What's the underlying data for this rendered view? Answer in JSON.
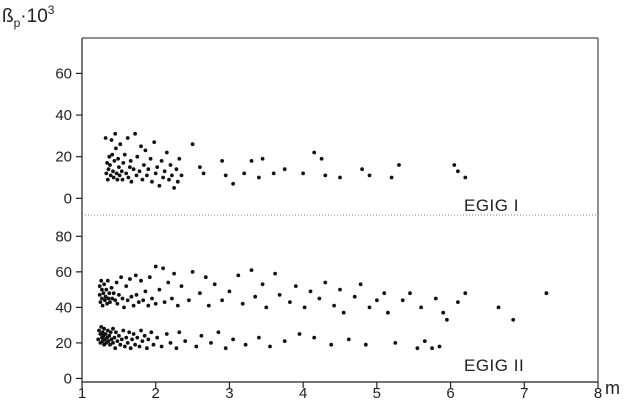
{
  "chart_data": {
    "type": "scatter",
    "ylabel": {
      "beta": "ß",
      "sub": "p",
      "dot": "·",
      "base": "10",
      "exp": "3"
    },
    "xunit": "m",
    "x_ticks": [
      "1",
      "2",
      "3",
      "4",
      "5",
      "6",
      "7",
      "8"
    ],
    "xlim": [
      1,
      8
    ],
    "grid": false,
    "panels": [
      {
        "label": "EGIG I",
        "ylim": [
          -8,
          77
        ],
        "y_ticks": [
          "0",
          "20",
          "40",
          "60"
        ],
        "y_tick_values": [
          0,
          20,
          40,
          60
        ],
        "points": [
          [
            1.32,
            29
          ],
          [
            1.33,
            12
          ],
          [
            1.34,
            17
          ],
          [
            1.35,
            9
          ],
          [
            1.36,
            14
          ],
          [
            1.37,
            20
          ],
          [
            1.38,
            16
          ],
          [
            1.39,
            11
          ],
          [
            1.4,
            28
          ],
          [
            1.41,
            21
          ],
          [
            1.42,
            13
          ],
          [
            1.43,
            10
          ],
          [
            1.44,
            18
          ],
          [
            1.45,
            31
          ],
          [
            1.46,
            24
          ],
          [
            1.47,
            12
          ],
          [
            1.48,
            9
          ],
          [
            1.49,
            19
          ],
          [
            1.5,
            15
          ],
          [
            1.51,
            11
          ],
          [
            1.52,
            26
          ],
          [
            1.54,
            13
          ],
          [
            1.55,
            9
          ],
          [
            1.56,
            17
          ],
          [
            1.58,
            21
          ],
          [
            1.6,
            12
          ],
          [
            1.62,
            29
          ],
          [
            1.63,
            10
          ],
          [
            1.65,
            15
          ],
          [
            1.66,
            18
          ],
          [
            1.67,
            8
          ],
          [
            1.7,
            14
          ],
          [
            1.72,
            31
          ],
          [
            1.74,
            11
          ],
          [
            1.75,
            20
          ],
          [
            1.78,
            13
          ],
          [
            1.8,
            25
          ],
          [
            1.82,
            9
          ],
          [
            1.84,
            16
          ],
          [
            1.86,
            23
          ],
          [
            1.88,
            11
          ],
          [
            1.9,
            14
          ],
          [
            1.93,
            19
          ],
          [
            1.95,
            8
          ],
          [
            1.98,
            27
          ],
          [
            2.0,
            12
          ],
          [
            2.02,
            15
          ],
          [
            2.05,
            6
          ],
          [
            2.08,
            18
          ],
          [
            2.1,
            10
          ],
          [
            2.12,
            13
          ],
          [
            2.15,
            22
          ],
          [
            2.18,
            9
          ],
          [
            2.2,
            16
          ],
          [
            2.22,
            11
          ],
          [
            2.25,
            5
          ],
          [
            2.28,
            14
          ],
          [
            2.3,
            8
          ],
          [
            2.32,
            19
          ],
          [
            2.35,
            11
          ],
          [
            2.5,
            26
          ],
          [
            2.6,
            15
          ],
          [
            2.65,
            12
          ],
          [
            2.9,
            18
          ],
          [
            2.95,
            11
          ],
          [
            3.05,
            7
          ],
          [
            3.2,
            12
          ],
          [
            3.3,
            18
          ],
          [
            3.4,
            10
          ],
          [
            3.45,
            19
          ],
          [
            3.6,
            12
          ],
          [
            3.75,
            14
          ],
          [
            4.0,
            12
          ],
          [
            4.15,
            22
          ],
          [
            4.25,
            19
          ],
          [
            4.3,
            11
          ],
          [
            4.5,
            10
          ],
          [
            4.8,
            14
          ],
          [
            4.9,
            11
          ],
          [
            5.2,
            10
          ],
          [
            5.3,
            16
          ],
          [
            6.05,
            16
          ],
          [
            6.1,
            13
          ],
          [
            6.2,
            10
          ]
        ]
      },
      {
        "label": "EGIG II",
        "ylim": [
          -2,
          92
        ],
        "y_ticks": [
          "0",
          "20",
          "40",
          "60",
          "80"
        ],
        "y_tick_values": [
          0,
          20,
          40,
          60,
          80
        ],
        "points": [
          [
            1.22,
            22
          ],
          [
            1.23,
            27
          ],
          [
            1.24,
            47
          ],
          [
            1.24,
            52
          ],
          [
            1.25,
            20
          ],
          [
            1.25,
            25
          ],
          [
            1.25,
            43
          ],
          [
            1.26,
            29
          ],
          [
            1.26,
            55
          ],
          [
            1.27,
            23
          ],
          [
            1.27,
            45
          ],
          [
            1.27,
            50
          ],
          [
            1.28,
            21
          ],
          [
            1.28,
            26
          ],
          [
            1.28,
            41
          ],
          [
            1.29,
            24
          ],
          [
            1.29,
            48
          ],
          [
            1.3,
            19
          ],
          [
            1.3,
            28
          ],
          [
            1.3,
            53
          ],
          [
            1.31,
            22
          ],
          [
            1.31,
            44
          ],
          [
            1.32,
            25
          ],
          [
            1.32,
            46
          ],
          [
            1.33,
            20
          ],
          [
            1.33,
            50
          ],
          [
            1.34,
            23
          ],
          [
            1.34,
            42
          ],
          [
            1.35,
            27
          ],
          [
            1.35,
            55
          ],
          [
            1.36,
            21
          ],
          [
            1.36,
            45
          ],
          [
            1.37,
            24
          ],
          [
            1.37,
            48
          ],
          [
            1.38,
            19
          ],
          [
            1.38,
            43
          ],
          [
            1.39,
            26
          ],
          [
            1.4,
            22
          ],
          [
            1.4,
            51
          ],
          [
            1.41,
            45
          ],
          [
            1.42,
            20
          ],
          [
            1.42,
            28
          ],
          [
            1.43,
            48
          ],
          [
            1.44,
            23
          ],
          [
            1.45,
            17
          ],
          [
            1.45,
            44
          ],
          [
            1.46,
            26
          ],
          [
            1.47,
            54
          ],
          [
            1.48,
            21
          ],
          [
            1.48,
            42
          ],
          [
            1.5,
            24
          ],
          [
            1.5,
            47
          ],
          [
            1.52,
            19
          ],
          [
            1.53,
            57
          ],
          [
            1.54,
            22
          ],
          [
            1.55,
            45
          ],
          [
            1.56,
            27
          ],
          [
            1.57,
            40
          ],
          [
            1.58,
            18
          ],
          [
            1.6,
            23
          ],
          [
            1.6,
            52
          ],
          [
            1.62,
            20
          ],
          [
            1.62,
            44
          ],
          [
            1.64,
            26
          ],
          [
            1.65,
            56
          ],
          [
            1.66,
            17
          ],
          [
            1.67,
            46
          ],
          [
            1.68,
            22
          ],
          [
            1.7,
            41
          ],
          [
            1.7,
            25
          ],
          [
            1.72,
            19
          ],
          [
            1.73,
            58
          ],
          [
            1.74,
            47
          ],
          [
            1.75,
            23
          ],
          [
            1.77,
            43
          ],
          [
            1.78,
            18
          ],
          [
            1.8,
            27
          ],
          [
            1.8,
            55
          ],
          [
            1.82,
            21
          ],
          [
            1.83,
            44
          ],
          [
            1.85,
            24
          ],
          [
            1.86,
            49
          ],
          [
            1.88,
            17
          ],
          [
            1.9,
            41
          ],
          [
            1.9,
            22
          ],
          [
            1.92,
            57
          ],
          [
            1.94,
            26
          ],
          [
            1.95,
            45
          ],
          [
            1.97,
            19
          ],
          [
            2.0,
            63
          ],
          [
            2.0,
            42
          ],
          [
            2.02,
            23
          ],
          [
            2.05,
            50
          ],
          [
            2.08,
            18
          ],
          [
            2.1,
            62
          ],
          [
            2.12,
            43
          ],
          [
            2.15,
            25
          ],
          [
            2.17,
            54
          ],
          [
            2.2,
            20
          ],
          [
            2.22,
            45
          ],
          [
            2.25,
            59
          ],
          [
            2.28,
            17
          ],
          [
            2.3,
            41
          ],
          [
            2.32,
            26
          ],
          [
            2.35,
            52
          ],
          [
            2.4,
            21
          ],
          [
            2.45,
            44
          ],
          [
            2.5,
            60
          ],
          [
            2.55,
            18
          ],
          [
            2.6,
            48
          ],
          [
            2.62,
            24
          ],
          [
            2.68,
            57
          ],
          [
            2.72,
            41
          ],
          [
            2.75,
            20
          ],
          [
            2.8,
            53
          ],
          [
            2.85,
            26
          ],
          [
            2.9,
            44
          ],
          [
            2.95,
            17
          ],
          [
            3.0,
            49
          ],
          [
            3.05,
            22
          ],
          [
            3.12,
            58
          ],
          [
            3.18,
            42
          ],
          [
            3.22,
            19
          ],
          [
            3.3,
            61
          ],
          [
            3.35,
            46
          ],
          [
            3.4,
            23
          ],
          [
            3.45,
            53
          ],
          [
            3.5,
            40
          ],
          [
            3.55,
            18
          ],
          [
            3.62,
            59
          ],
          [
            3.68,
            47
          ],
          [
            3.75,
            21
          ],
          [
            3.82,
            43
          ],
          [
            3.9,
            52
          ],
          [
            3.95,
            25
          ],
          [
            4.02,
            40
          ],
          [
            4.1,
            49
          ],
          [
            4.15,
            23
          ],
          [
            4.22,
            45
          ],
          [
            4.3,
            54
          ],
          [
            4.38,
            19
          ],
          [
            4.42,
            41
          ],
          [
            4.5,
            50
          ],
          [
            4.55,
            37
          ],
          [
            4.62,
            22
          ],
          [
            4.7,
            46
          ],
          [
            4.78,
            53
          ],
          [
            4.85,
            19
          ],
          [
            4.9,
            40
          ],
          [
            5.0,
            44
          ],
          [
            5.1,
            48
          ],
          [
            5.15,
            37
          ],
          [
            5.25,
            20
          ],
          [
            5.35,
            44
          ],
          [
            5.45,
            48
          ],
          [
            5.55,
            17
          ],
          [
            5.6,
            40
          ],
          [
            5.65,
            21
          ],
          [
            5.75,
            17
          ],
          [
            5.8,
            45
          ],
          [
            5.85,
            18
          ],
          [
            5.9,
            37
          ],
          [
            5.95,
            33
          ],
          [
            6.1,
            43
          ],
          [
            6.2,
            48
          ],
          [
            6.65,
            40
          ],
          [
            6.85,
            33
          ],
          [
            7.3,
            48
          ]
        ]
      }
    ]
  }
}
